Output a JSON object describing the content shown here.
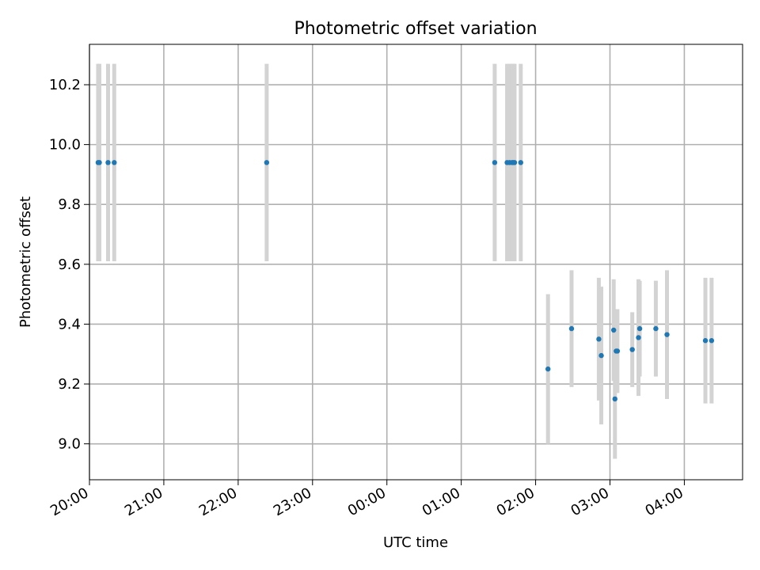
{
  "chart_data": {
    "type": "scatter",
    "title": "Photometric offset variation",
    "xlabel": "UTC time",
    "ylabel": "Photometric offset",
    "x_axis": {
      "type": "time",
      "range": [
        "20:00",
        "04:47"
      ],
      "ticks": [
        {
          "value": "20:00",
          "label": "20:00"
        },
        {
          "value": "21:00",
          "label": "21:00"
        },
        {
          "value": "22:00",
          "label": "22:00"
        },
        {
          "value": "23:00",
          "label": "23:00"
        },
        {
          "value": "00:00",
          "label": "00:00"
        },
        {
          "value": "01:00",
          "label": "01:00"
        },
        {
          "value": "02:00",
          "label": "02:00"
        },
        {
          "value": "03:00",
          "label": "03:00"
        },
        {
          "value": "04:00",
          "label": "04:00"
        }
      ]
    },
    "y_axis": {
      "range": [
        8.88,
        10.335
      ],
      "ticks": [
        {
          "value": 9.0,
          "label": "9.0"
        },
        {
          "value": 9.2,
          "label": "9.2"
        },
        {
          "value": 9.4,
          "label": "9.4"
        },
        {
          "value": 9.6,
          "label": "9.6"
        },
        {
          "value": 9.8,
          "label": "9.8"
        },
        {
          "value": 10.0,
          "label": "10.0"
        },
        {
          "value": 10.2,
          "label": "10.2"
        }
      ]
    },
    "grid": true,
    "legend": "none",
    "colors": {
      "marker": "#1f77b4",
      "errorbar": "#d3d3d3",
      "grid": "#b0b0b0"
    },
    "series": [
      {
        "points": [
          {
            "x": "20:07",
            "y": 9.94,
            "yerr": 0.33
          },
          {
            "x": "20:08",
            "y": 9.94,
            "yerr": 0.33
          },
          {
            "x": "20:15",
            "y": 9.94,
            "yerr": 0.33
          },
          {
            "x": "20:20",
            "y": 9.94,
            "yerr": 0.33
          },
          {
            "x": "22:23",
            "y": 9.94,
            "yerr": 0.33
          },
          {
            "x": "01:27",
            "y": 9.94,
            "yerr": 0.33
          },
          {
            "x": "01:37",
            "y": 9.94,
            "yerr": 0.33
          },
          {
            "x": "01:39",
            "y": 9.94,
            "yerr": 0.33
          },
          {
            "x": "01:41",
            "y": 9.94,
            "yerr": 0.33
          },
          {
            "x": "01:42",
            "y": 9.94,
            "yerr": 0.33
          },
          {
            "x": "01:43",
            "y": 9.94,
            "yerr": 0.33
          },
          {
            "x": "01:48",
            "y": 9.94,
            "yerr": 0.33
          },
          {
            "x": "02:10",
            "y": 9.25,
            "yerr": 0.25
          },
          {
            "x": "02:29",
            "y": 9.385,
            "yerr": 0.195
          },
          {
            "x": "02:51",
            "y": 9.35,
            "yerr": 0.205
          },
          {
            "x": "02:53",
            "y": 9.295,
            "yerr": 0.23
          },
          {
            "x": "03:03",
            "y": 9.38,
            "yerr": 0.17
          },
          {
            "x": "03:04",
            "y": 9.15,
            "yerr": 0.2
          },
          {
            "x": "03:05",
            "y": 9.31,
            "yerr": 0.14
          },
          {
            "x": "03:06",
            "y": 9.31,
            "yerr": 0.14
          },
          {
            "x": "03:18",
            "y": 9.315,
            "yerr": 0.125
          },
          {
            "x": "03:23",
            "y": 9.355,
            "yerr": 0.195
          },
          {
            "x": "03:24",
            "y": 9.385,
            "yerr": 0.16
          },
          {
            "x": "03:37",
            "y": 9.385,
            "yerr": 0.16
          },
          {
            "x": "03:46",
            "y": 9.365,
            "yerr": 0.215
          },
          {
            "x": "04:17",
            "y": 9.345,
            "yerr": 0.21
          },
          {
            "x": "04:22",
            "y": 9.345,
            "yerr": 0.21
          }
        ]
      }
    ]
  }
}
